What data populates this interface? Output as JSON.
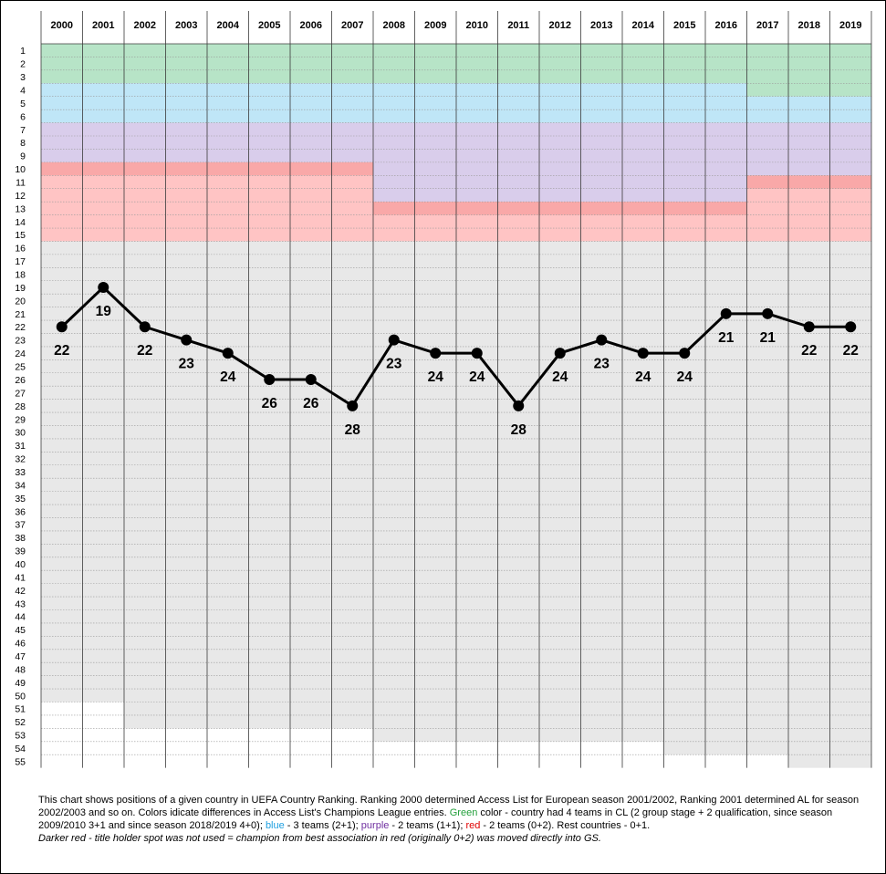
{
  "chart_data": {
    "type": "line",
    "x": [
      "2000",
      "2001",
      "2002",
      "2003",
      "2004",
      "2005",
      "2006",
      "2007",
      "2008",
      "2009",
      "2010",
      "2011",
      "2012",
      "2013",
      "2014",
      "2015",
      "2016",
      "2017",
      "2018",
      "2019"
    ],
    "values": [
      22,
      19,
      22,
      23,
      24,
      26,
      26,
      28,
      23,
      24,
      24,
      28,
      24,
      23,
      24,
      24,
      21,
      21,
      22,
      22
    ],
    "ylim": [
      1,
      55
    ],
    "y_inverted": true,
    "y_ticks": [
      1,
      2,
      3,
      4,
      5,
      6,
      7,
      8,
      9,
      10,
      11,
      12,
      13,
      14,
      15,
      16,
      17,
      18,
      19,
      20,
      21,
      22,
      23,
      24,
      25,
      26,
      27,
      28,
      29,
      30,
      31,
      32,
      33,
      34,
      35,
      36,
      37,
      38,
      39,
      40,
      41,
      42,
      43,
      44,
      45,
      46,
      47,
      48,
      49,
      50,
      51,
      52,
      53,
      54,
      55
    ],
    "title": "",
    "xlabel": "",
    "ylabel": "",
    "grid": true,
    "line_color": "#000000",
    "access_bands": [
      {
        "zone": "green",
        "color": "#b7e4c7",
        "from_year": "2000",
        "to_year": "2016",
        "rank_from": 1,
        "rank_to": 3
      },
      {
        "zone": "green",
        "color": "#b7e4c7",
        "from_year": "2017",
        "to_year": "2019",
        "rank_from": 1,
        "rank_to": 4
      },
      {
        "zone": "blue",
        "color": "#bfe6f7",
        "from_year": "2000",
        "to_year": "2016",
        "rank_from": 4,
        "rank_to": 6
      },
      {
        "zone": "blue",
        "color": "#bfe6f7",
        "from_year": "2017",
        "to_year": "2019",
        "rank_from": 5,
        "rank_to": 6
      },
      {
        "zone": "purple",
        "color": "#d9cdeb",
        "from_year": "2000",
        "to_year": "2007",
        "rank_from": 7,
        "rank_to": 9
      },
      {
        "zone": "purple",
        "color": "#d9cdeb",
        "from_year": "2008",
        "to_year": "2016",
        "rank_from": 7,
        "rank_to": 12
      },
      {
        "zone": "purple",
        "color": "#d9cdeb",
        "from_year": "2017",
        "to_year": "2019",
        "rank_from": 7,
        "rank_to": 10
      },
      {
        "zone": "red",
        "color": "#ffc4c4",
        "from_year": "2000",
        "to_year": "2007",
        "rank_from": 10,
        "rank_to": 15
      },
      {
        "zone": "red-dark",
        "color": "#f9a8a8",
        "from_year": "2000",
        "to_year": "2007",
        "rank_from": 10,
        "rank_to": 10
      },
      {
        "zone": "red",
        "color": "#ffc4c4",
        "from_year": "2008",
        "to_year": "2016",
        "rank_from": 13,
        "rank_to": 15
      },
      {
        "zone": "red-dark",
        "color": "#f9a8a8",
        "from_year": "2008",
        "to_year": "2016",
        "rank_from": 13,
        "rank_to": 13
      },
      {
        "zone": "red",
        "color": "#ffc4c4",
        "from_year": "2017",
        "to_year": "2019",
        "rank_from": 11,
        "rank_to": 15
      },
      {
        "zone": "red-dark",
        "color": "#f9a8a8",
        "from_year": "2017",
        "to_year": "2019",
        "rank_from": 11,
        "rank_to": 11
      }
    ],
    "ranked_countries_per_year": [
      50,
      50,
      52,
      52,
      52,
      52,
      52,
      52,
      53,
      53,
      53,
      53,
      53,
      53,
      53,
      54,
      54,
      54,
      55,
      55
    ],
    "colors": {
      "rest_zone": "#e8e8e8",
      "unranked": "#ffffff"
    }
  },
  "caption": {
    "line1": "This chart shows positions of a given country in UEFA Country Ranking. Ranking 2000 determined Access List for European season 2001/2002, Ranking 2001 determined AL for season 2002/2003 and so on.  Colors idicate differences in Access List's Champions League entries. ",
    "green_word": "Green",
    "green_text": " color - country had 4 teams in CL (2 group stage + 2 qualification, since season 2009/2010 3+1 and since season 2018/2019  4+0); ",
    "blue_word": "blue",
    "blue_text": " - 3 teams  (2+1); ",
    "purple_word": "purple",
    "purple_text": " - 2 teams (1+1); ",
    "red_word": "red",
    "red_text": " - 2 teams (0+2). Rest countries - 0+1.",
    "line2": "Darker red - title holder spot was not used = champion from best association in red (originally 0+2) was moved directly into GS."
  }
}
